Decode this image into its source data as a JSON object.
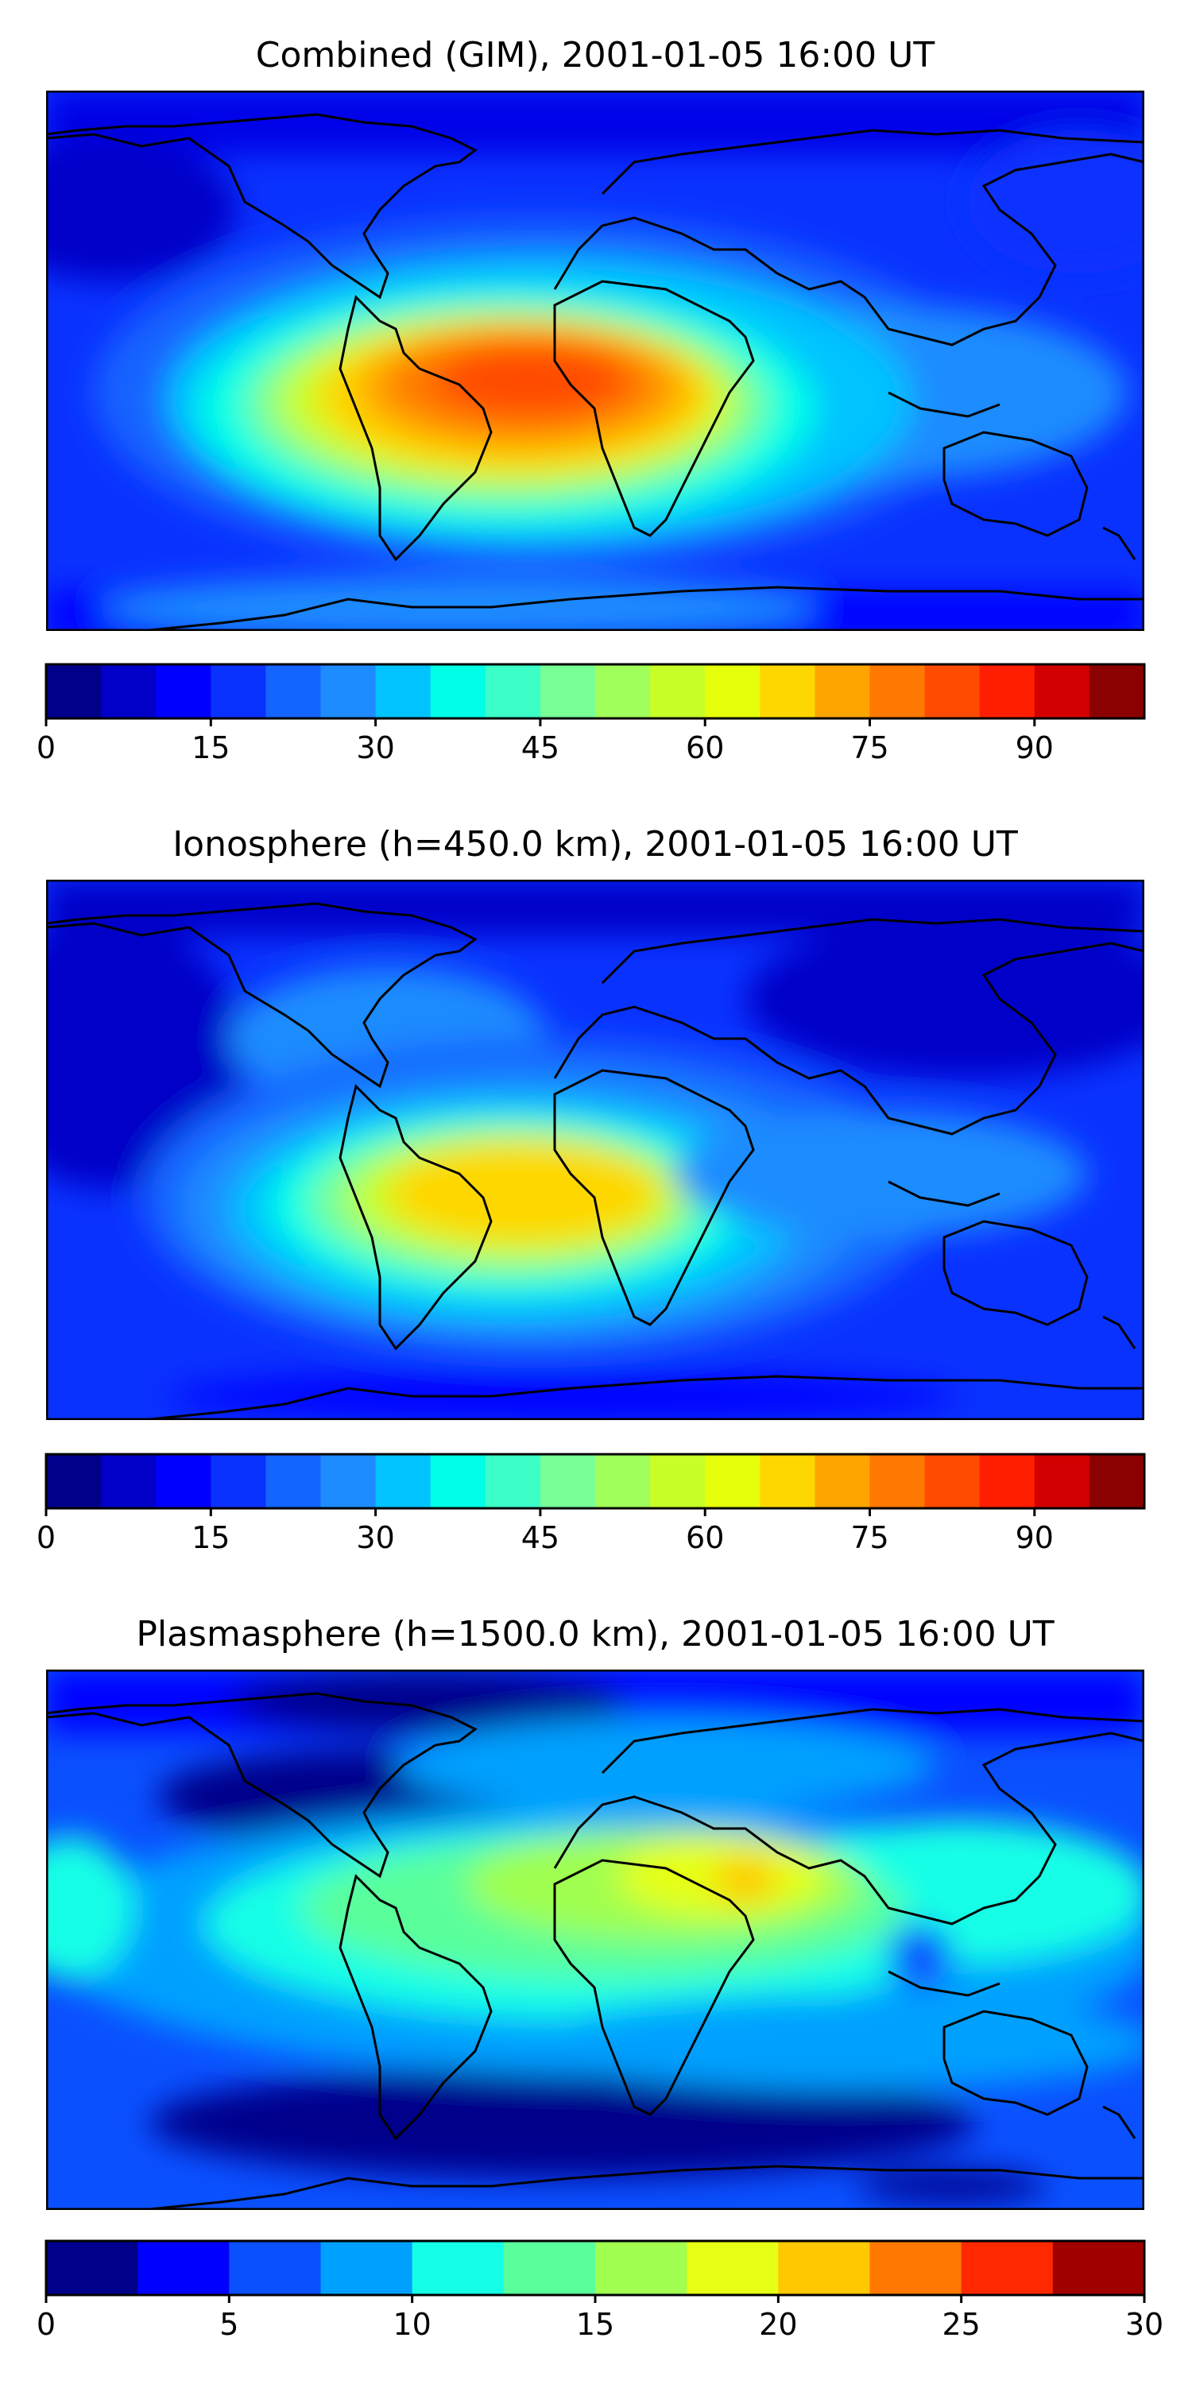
{
  "chart_data": [
    {
      "type": "heatmap",
      "title": "Combined (GIM), 2001-01-05 16:00 UT",
      "colorbar": {
        "vmin": 0,
        "vmax": 100,
        "step": 5,
        "ticks": [
          0,
          15,
          30,
          45,
          60,
          75,
          90
        ],
        "tick_labels": [
          "0",
          "15",
          "30",
          "45",
          "60",
          "75",
          "90"
        ],
        "colors": [
          "#00008b",
          "#0000c8",
          "#0000ff",
          "#0a32ff",
          "#1464ff",
          "#1e8cff",
          "#00c3ff",
          "#00ffe6",
          "#3cffc8",
          "#78ff96",
          "#a0ff5a",
          "#c8ff28",
          "#e6ff0a",
          "#ffd700",
          "#ffa500",
          "#ff7800",
          "#ff4b00",
          "#ff1e00",
          "#d20000",
          "#8b0000"
        ]
      },
      "max_region": "South America / tropical Atlantic",
      "approx_max_value": 80
    },
    {
      "type": "heatmap",
      "title": "Ionosphere  (h=450.0 km), 2001-01-05 16:00 UT",
      "colorbar": {
        "vmin": 0,
        "vmax": 100,
        "step": 5,
        "ticks": [
          0,
          15,
          30,
          45,
          60,
          75,
          90
        ],
        "tick_labels": [
          "0",
          "15",
          "30",
          "45",
          "60",
          "75",
          "90"
        ],
        "colors": [
          "#00008b",
          "#0000c8",
          "#0000ff",
          "#0a32ff",
          "#1464ff",
          "#1e8cff",
          "#00c3ff",
          "#00ffe6",
          "#3cffc8",
          "#78ff96",
          "#a0ff5a",
          "#c8ff28",
          "#e6ff0a",
          "#ffd700",
          "#ffa500",
          "#ff7800",
          "#ff4b00",
          "#ff1e00",
          "#d20000",
          "#8b0000"
        ]
      },
      "max_region": "South America / tropical Atlantic",
      "approx_max_value": 70
    },
    {
      "type": "heatmap",
      "title": "Plasmasphere (h=1500.0 km), 2001-01-05 16:00 UT",
      "colorbar": {
        "vmin": 0,
        "vmax": 30,
        "step": 2.5,
        "ticks": [
          0,
          5,
          10,
          15,
          20,
          25,
          30
        ],
        "tick_labels": [
          "0",
          "5",
          "10",
          "15",
          "20",
          "25",
          "30"
        ],
        "colors": [
          "#00008b",
          "#0000ff",
          "#0a50ff",
          "#00a0ff",
          "#14ffe6",
          "#5aff9b",
          "#a0ff50",
          "#e6ff14",
          "#ffc800",
          "#ff7800",
          "#ff2800",
          "#a00000"
        ]
      },
      "max_region": "Arabian Peninsula / Red Sea",
      "approx_max_value": 22
    }
  ]
}
